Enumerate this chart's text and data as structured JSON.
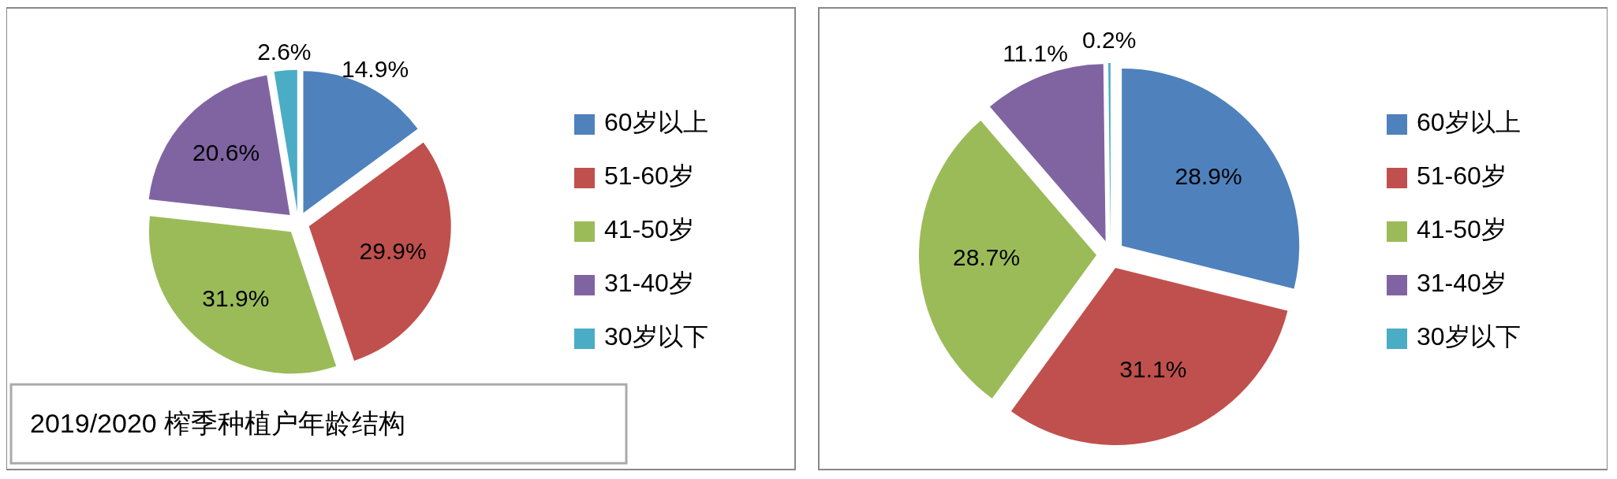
{
  "chart_data": [
    {
      "type": "pie",
      "title": "2019/2020 榨季种植户年龄结构",
      "categories": [
        "60岁以上",
        "51-60岁",
        "41-50岁",
        "31-40岁",
        "30岁以下"
      ],
      "values": [
        14.9,
        29.9,
        31.9,
        20.6,
        2.6
      ],
      "value_labels": [
        "14.9%",
        "29.9%",
        "31.9%",
        "20.6%",
        "2.6%"
      ],
      "data_labels": true,
      "colors": [
        "#4f81bd",
        "#c0504d",
        "#9bbb59",
        "#8064a2",
        "#4bacc6"
      ],
      "legend": "right"
    },
    {
      "type": "pie",
      "categories": [
        "60岁以上",
        "51-60岁",
        "41-50岁",
        "31-40岁",
        "30岁以下"
      ],
      "values": [
        28.9,
        31.1,
        28.7,
        11.1,
        0.2
      ],
      "value_labels": [
        "28.9%",
        "31.1%",
        "28.7%",
        "11.1%",
        "0.2%"
      ],
      "data_labels": true,
      "colors": [
        "#4f81bd",
        "#c0504d",
        "#9bbb59",
        "#8064a2",
        "#4bacc6"
      ],
      "legend": "right"
    }
  ]
}
